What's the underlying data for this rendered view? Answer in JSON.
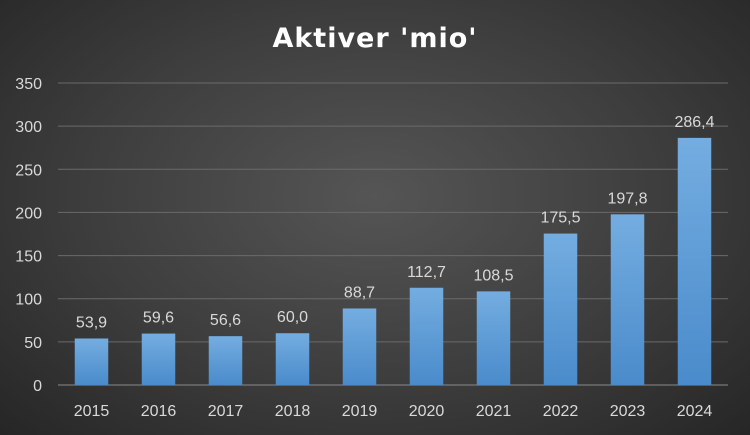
{
  "chart_data": {
    "type": "bar",
    "title": "Aktiver 'mio'",
    "categories": [
      "2015",
      "2016",
      "2017",
      "2018",
      "2019",
      "2020",
      "2021",
      "2022",
      "2023",
      "2024"
    ],
    "values": [
      53.9,
      59.6,
      56.6,
      60.0,
      88.7,
      112.7,
      108.5,
      175.5,
      197.8,
      286.4
    ],
    "data_labels": [
      "53,9",
      "59,6",
      "56,6",
      "60,0",
      "88,7",
      "112,7",
      "108,5",
      "175,5",
      "197,8",
      "286,4"
    ],
    "y_ticks": [
      "0",
      "50",
      "100",
      "150",
      "200",
      "250",
      "300",
      "350"
    ],
    "ylim": [
      0,
      350
    ],
    "grid": true,
    "legend": false,
    "bar_color": "#5b9bd5"
  }
}
